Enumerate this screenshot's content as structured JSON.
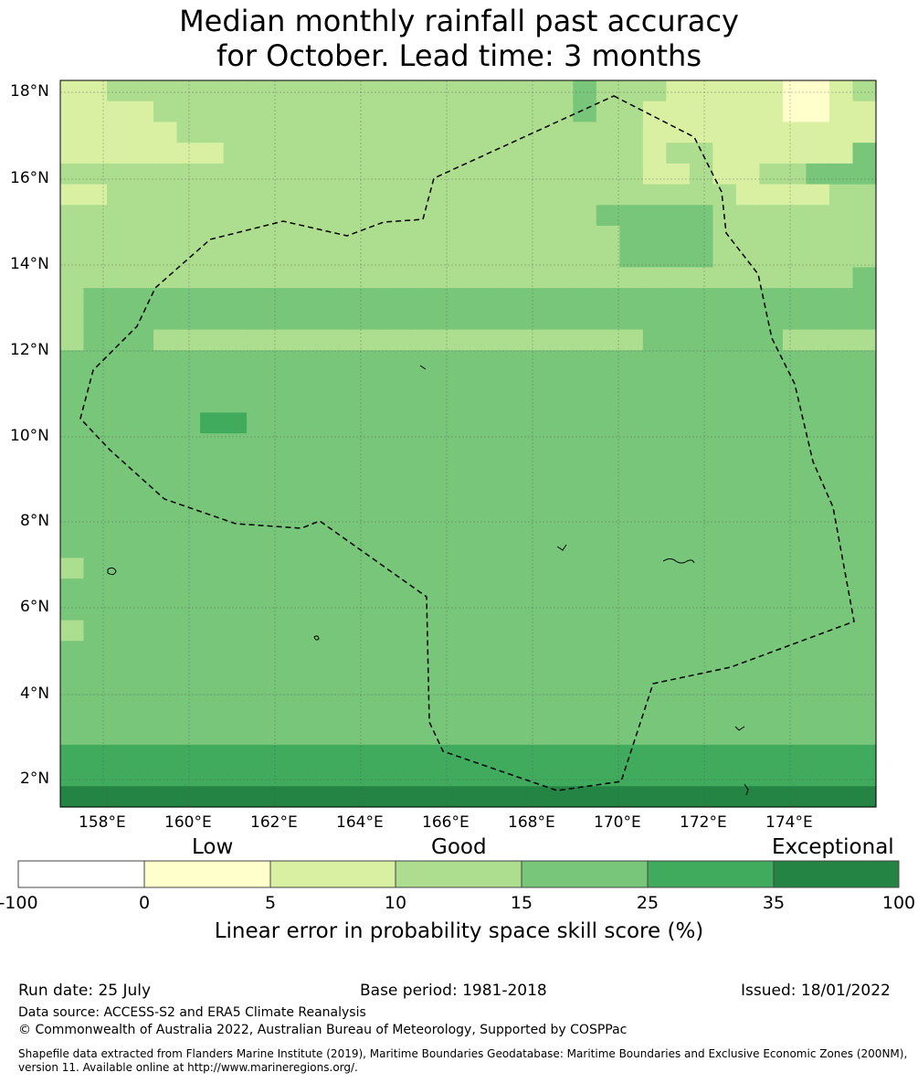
{
  "title": {
    "line1": "Median monthly rainfall past accuracy",
    "line2": "for October. Lead time: 3 months"
  },
  "map": {
    "lat_labels": [
      "18°N",
      "16°N",
      "14°N",
      "12°N",
      "10°N",
      "8°N",
      "6°N",
      "4°N",
      "2°N"
    ],
    "lon_labels": [
      "158°E",
      "160°E",
      "162°E",
      "164°E",
      "166°E",
      "168°E",
      "170°E",
      "172°E",
      "174°E"
    ],
    "class_colors": [
      "#ffffff",
      "#ffffcc",
      "#d9f0a3",
      "#addd8e",
      "#78c679",
      "#41ab5d",
      "#238443"
    ],
    "grid": [
      "22333333333333333333334333222221123",
      "22223333333333333333334332222221122",
      "22222333333333333333333332222222222",
      "22222223333333333333333332332222224",
      "33333333333333333333333332232233444",
      "22333333333333333333333333333222233",
      "33333333333333333333333444443333333",
      "33333333333333333333333344443333333",
      "33333333333333333333333344443333333",
      "33333333333333333333333333333333334",
      "34444444444444444444444444444444444",
      "34444444444444444444444444444444444",
      "34443333333333333333333334444443333",
      "44444444444444444444444444444444444",
      "44444444444444444444444444444444444",
      "44444444444444444444444444444444444",
      "44444455444444444444444444444444444",
      "44444444444444444444444444444444444",
      "44444444444444444444444444444444444",
      "44444444444444444444444444444444444",
      "44444444444444444444444444444444444",
      "44444444444444444444444444444444444",
      "44444444444444444444444444444444444",
      "34444444444444444444444444444444444",
      "44444444444444444444444444444444444",
      "44444444444444444444444444444444444",
      "34444444444444444444444444444444444",
      "44444444444444444444444444444444444",
      "44444444444444444444444444444444444",
      "44444444444444444444444444444444444",
      "44444444444444444444444444444444444",
      "44444444444444444444444444444444444",
      "55555555555555555555555555555555555",
      "55555555555555555555555555555555555",
      "66666666666666666666666666666666666"
    ]
  },
  "colorbar": {
    "label_low": "Low",
    "label_good": "Good",
    "label_exceptional": "Exceptional",
    "ticks": [
      "-100",
      "0",
      "5",
      "10",
      "15",
      "25",
      "35",
      "100"
    ],
    "title": "Linear error in probability space skill score (%)"
  },
  "footer": {
    "run_date": "Run date: 25 July",
    "base_period": "Base period: 1981-2018",
    "issued": "Issued: 18/01/2022",
    "data_source": "Data source: ACCESS-S2 and ERA5 Climate Reanalysis",
    "copyright": "© Commonwealth of Australia 2022, Australian Bureau of Meteorology, Supported by COSPPac",
    "shapefile": "Shapefile data extracted from Flanders Marine Institute (2019), Maritime Boundaries Geodatabase: Maritime Boundaries and Exclusive Economic Zones (200NM), version 11. Available online at http://www.marineregions.org/."
  }
}
